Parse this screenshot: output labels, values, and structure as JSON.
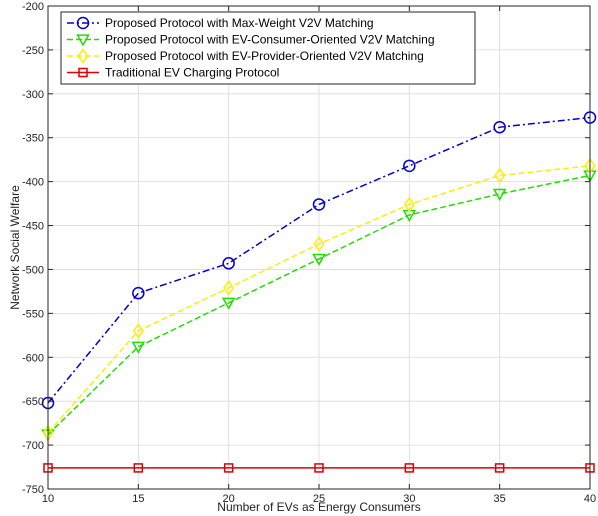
{
  "chart_data": {
    "type": "line",
    "xlabel": "Number of EVs as Energy Consumers",
    "ylabel": "Network Social Welfare",
    "xlim": [
      10,
      40
    ],
    "ylim": [
      -750,
      -200
    ],
    "xticks": [
      10,
      15,
      20,
      25,
      30,
      35,
      40
    ],
    "yticks": [
      -750,
      -700,
      -650,
      -600,
      -550,
      -500,
      -450,
      -400,
      -350,
      -300,
      -250,
      -200
    ],
    "grid": true,
    "legend_position": "top-left",
    "x": [
      10,
      15,
      20,
      25,
      30,
      35,
      40
    ],
    "series": [
      {
        "name": "Proposed Protocol with Max-Weight V2V Matching",
        "color": "#0000cc",
        "line_style": "dash-dot",
        "marker": "circle",
        "values": [
          -652,
          -527,
          -493,
          -426,
          -382,
          -338,
          -327
        ]
      },
      {
        "name": "Proposed Protocol with EV-Consumer-Oriented V2V Matching",
        "color": "#22dd00",
        "line_style": "dashed",
        "marker": "triangle-down",
        "values": [
          -688,
          -588,
          -538,
          -488,
          -438,
          -414,
          -393
        ]
      },
      {
        "name": "Proposed Protocol with EV-Provider-Oriented V2V Matching",
        "color": "#ffee00",
        "line_style": "dashed",
        "marker": "diamond",
        "values": [
          -686,
          -570,
          -521,
          -471,
          -426,
          -393,
          -382
        ]
      },
      {
        "name": "Traditional EV Charging Protocol",
        "color": "#dd0000",
        "line_style": "solid",
        "marker": "square",
        "values": [
          -726,
          -726,
          -726,
          -726,
          -726,
          -726,
          -726
        ]
      }
    ]
  }
}
